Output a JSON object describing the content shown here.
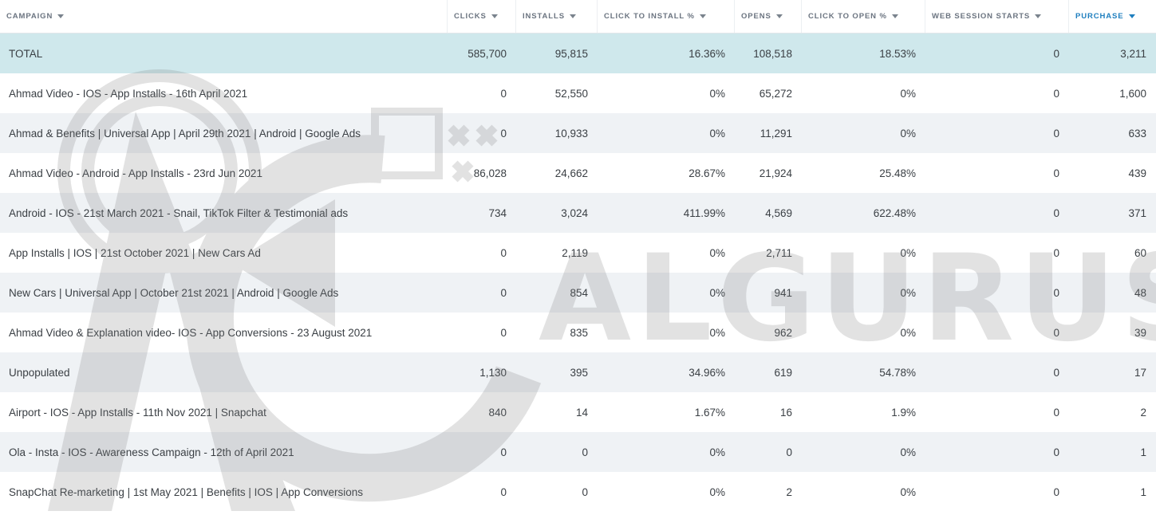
{
  "table": {
    "headers": [
      {
        "label": "CAMPAIGN",
        "active": false
      },
      {
        "label": "CLICKS",
        "active": false
      },
      {
        "label": "INSTALLS",
        "active": false
      },
      {
        "label": "CLICK TO INSTALL %",
        "active": false
      },
      {
        "label": "OPENS",
        "active": false
      },
      {
        "label": "CLICK TO OPEN %",
        "active": false
      },
      {
        "label": "WEB SESSION STARTS",
        "active": false
      },
      {
        "label": "PURCHASE",
        "active": true
      }
    ],
    "total": {
      "campaign": "TOTAL",
      "clicks": "585,700",
      "installs": "95,815",
      "click_to_install": "16.36%",
      "opens": "108,518",
      "click_to_open": "18.53%",
      "web_session_starts": "0",
      "purchase": "3,211"
    },
    "rows": [
      {
        "campaign": "Ahmad Video - IOS - App Installs - 16th April 2021",
        "clicks": "0",
        "installs": "52,550",
        "click_to_install": "0%",
        "opens": "65,272",
        "click_to_open": "0%",
        "web_session_starts": "0",
        "purchase": "1,600"
      },
      {
        "campaign": "Ahmad & Benefits | Universal App | April 29th 2021 | Android | Google Ads",
        "clicks": "0",
        "installs": "10,933",
        "click_to_install": "0%",
        "opens": "11,291",
        "click_to_open": "0%",
        "web_session_starts": "0",
        "purchase": "633"
      },
      {
        "campaign": "Ahmad Video - Android - App Installs - 23rd Jun 2021",
        "clicks": "86,028",
        "installs": "24,662",
        "click_to_install": "28.67%",
        "opens": "21,924",
        "click_to_open": "25.48%",
        "web_session_starts": "0",
        "purchase": "439"
      },
      {
        "campaign": "Android - IOS - 21st March 2021 - Snail, TikTok Filter & Testimonial ads",
        "clicks": "734",
        "installs": "3,024",
        "click_to_install": "411.99%",
        "opens": "4,569",
        "click_to_open": "622.48%",
        "web_session_starts": "0",
        "purchase": "371"
      },
      {
        "campaign": "App Installs | IOS | 21st October 2021 | New Cars Ad",
        "clicks": "0",
        "installs": "2,119",
        "click_to_install": "0%",
        "opens": "2,711",
        "click_to_open": "0%",
        "web_session_starts": "0",
        "purchase": "60"
      },
      {
        "campaign": "New Cars | Universal App | October 21st 2021 | Android | Google Ads",
        "clicks": "0",
        "installs": "854",
        "click_to_install": "0%",
        "opens": "941",
        "click_to_open": "0%",
        "web_session_starts": "0",
        "purchase": "48"
      },
      {
        "campaign": "Ahmad Video & Explanation video- IOS - App Conversions - 23 August 2021",
        "clicks": "0",
        "installs": "835",
        "click_to_install": "0%",
        "opens": "962",
        "click_to_open": "0%",
        "web_session_starts": "0",
        "purchase": "39"
      },
      {
        "campaign": "Unpopulated",
        "clicks": "1,130",
        "installs": "395",
        "click_to_install": "34.96%",
        "opens": "619",
        "click_to_open": "54.78%",
        "web_session_starts": "0",
        "purchase": "17"
      },
      {
        "campaign": "Airport - IOS - App Installs - 11th Nov 2021 | Snapchat",
        "clicks": "840",
        "installs": "14",
        "click_to_install": "1.67%",
        "opens": "16",
        "click_to_open": "1.9%",
        "web_session_starts": "0",
        "purchase": "2"
      },
      {
        "campaign": "Ola - Insta - IOS - Awareness Campaign - 12th of April 2021",
        "clicks": "0",
        "installs": "0",
        "click_to_install": "0%",
        "opens": "0",
        "click_to_open": "0%",
        "web_session_starts": "0",
        "purchase": "1"
      },
      {
        "campaign": "SnapChat Re-marketing | 1st May 2021 | Benefits | IOS | App Conversions",
        "clicks": "0",
        "installs": "0",
        "click_to_install": "0%",
        "opens": "2",
        "click_to_open": "0%",
        "web_session_starts": "0",
        "purchase": "1"
      }
    ]
  },
  "watermark": {
    "text": "ALGURUS",
    "icon": "ag-logo-icon"
  },
  "colors": {
    "total_row": "#cfe8ec",
    "alt_row": "#eff2f5",
    "active_header": "#1f7fbf"
  }
}
